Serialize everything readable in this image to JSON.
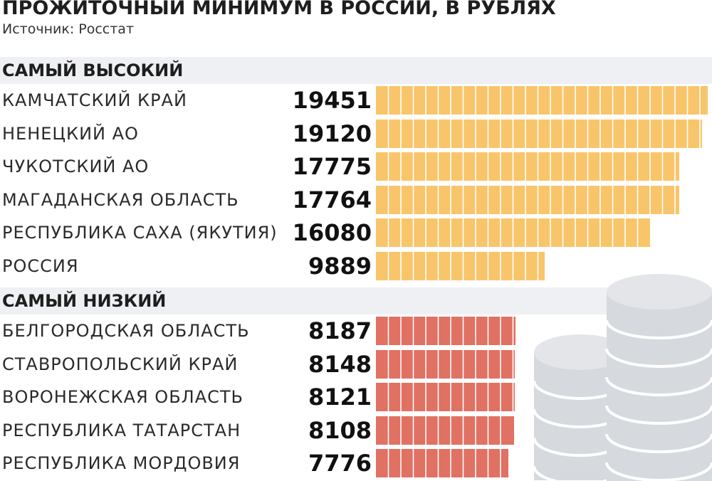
{
  "chart_data": {
    "type": "bar",
    "orientation": "horizontal",
    "title": "ПРОЖИТОЧНЫЙ МИНИМУМ В РОССИИ, В РУБЛЯХ",
    "source": "Источник: Росстат",
    "unit": "рубли",
    "groups": [
      {
        "label": "САМЫЙ ВЫСОКИЙ",
        "color": "#f9c56b",
        "items": [
          {
            "category": "КАМЧАТСКИЙ КРАЙ",
            "value": 19451
          },
          {
            "category": "НЕНЕЦКИЙ АО",
            "value": 19120
          },
          {
            "category": "ЧУКОТСКИЙ АО",
            "value": 17775
          },
          {
            "category": "МАГАДАНСКАЯ ОБЛАСТЬ",
            "value": 17764
          },
          {
            "category": "РЕСПУБЛИКА САХА (ЯКУТИЯ)",
            "value": 16080
          },
          {
            "category": "РОССИЯ",
            "value": 9889
          }
        ]
      },
      {
        "label": "САМЫЙ НИЗКИЙ",
        "color": "#e07163",
        "items": [
          {
            "category": "БЕЛГОРОДСКАЯ ОБЛАСТЬ",
            "value": 8187
          },
          {
            "category": "СТАВРОПОЛЬСКИЙ КРАЙ",
            "value": 8148
          },
          {
            "category": "ВОРОНЕЖСКАЯ ОБЛАСТЬ",
            "value": 8121
          },
          {
            "category": "РЕСПУБЛИКА ТАТАРСТАН",
            "value": 8108
          },
          {
            "category": "РЕСПУБЛИКА МОРДОВИЯ",
            "value": 7776
          }
        ]
      }
    ],
    "xlim": [
      0,
      19451
    ],
    "decoration": "coin-stacks-icon"
  }
}
